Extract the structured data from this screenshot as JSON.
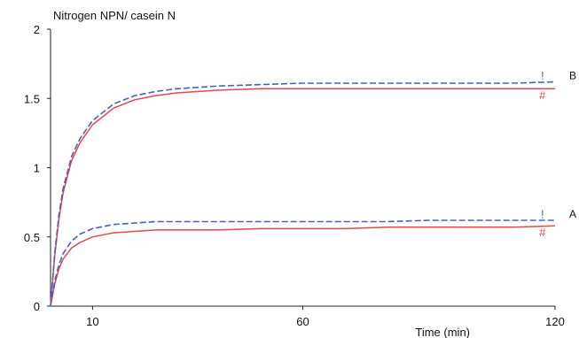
{
  "chart_data": {
    "type": "line",
    "title": "Nitrogen NPN/ casein N",
    "xlabel": "Time (min)",
    "ylabel": "",
    "xlim": [
      0,
      120
    ],
    "ylim": [
      0,
      2
    ],
    "x_ticks": [
      10,
      60,
      120
    ],
    "y_ticks": [
      0,
      0.5,
      1,
      1.5,
      2
    ],
    "y_tick_labels": [
      "0",
      "0.5",
      "1",
      "1.5",
      "2"
    ],
    "grid": false,
    "series": [
      {
        "name": "B",
        "line_color": "#e8464a",
        "x": [
          0,
          1,
          2,
          3,
          5,
          7,
          10,
          15,
          20,
          25,
          30,
          40,
          50,
          60,
          70,
          80,
          90,
          100,
          110,
          120
        ],
        "y": [
          0,
          0.36,
          0.63,
          0.82,
          1.05,
          1.18,
          1.31,
          1.43,
          1.49,
          1.52,
          1.54,
          1.56,
          1.57,
          1.57,
          1.57,
          1.57,
          1.57,
          1.57,
          1.57,
          1.57
        ]
      },
      {
        "name": "B",
        "line_color": "#4a5ec8",
        "x": [
          0,
          1,
          2,
          3,
          5,
          7,
          10,
          15,
          20,
          25,
          30,
          40,
          50,
          60,
          70,
          80,
          90,
          100,
          110,
          120
        ],
        "y": [
          0,
          0.38,
          0.66,
          0.85,
          1.08,
          1.21,
          1.34,
          1.46,
          1.52,
          1.55,
          1.57,
          1.59,
          1.6,
          1.61,
          1.61,
          1.61,
          1.61,
          1.61,
          1.61,
          1.62
        ]
      },
      {
        "name": "A",
        "line_color": "#e8464a",
        "x": [
          0,
          1,
          2,
          3,
          5,
          7,
          10,
          15,
          20,
          25,
          30,
          40,
          50,
          60,
          70,
          80,
          90,
          100,
          110,
          120
        ],
        "y": [
          0,
          0.16,
          0.27,
          0.34,
          0.42,
          0.46,
          0.5,
          0.53,
          0.54,
          0.55,
          0.55,
          0.55,
          0.56,
          0.56,
          0.56,
          0.57,
          0.57,
          0.57,
          0.57,
          0.58
        ]
      },
      {
        "name": "A",
        "line_color": "#4a5ec8",
        "x": [
          0,
          1,
          2,
          3,
          5,
          7,
          10,
          15,
          20,
          25,
          30,
          40,
          50,
          60,
          70,
          80,
          90,
          100,
          110,
          120
        ],
        "y": [
          0,
          0.18,
          0.3,
          0.38,
          0.47,
          0.52,
          0.56,
          0.59,
          0.6,
          0.61,
          0.61,
          0.61,
          0.61,
          0.61,
          0.61,
          0.61,
          0.62,
          0.62,
          0.62,
          0.62
        ]
      }
    ],
    "annotations": [
      {
        "text": "!",
        "x": 117,
        "y": 1.66,
        "color": "#4a5ec8"
      },
      {
        "text": "#",
        "x": 117,
        "y": 1.52,
        "color": "#e8464a"
      },
      {
        "text": "!",
        "x": 117,
        "y": 0.66,
        "color": "#4a5ec8"
      },
      {
        "text": "#",
        "x": 117,
        "y": 0.53,
        "color": "#e8464a"
      }
    ]
  }
}
